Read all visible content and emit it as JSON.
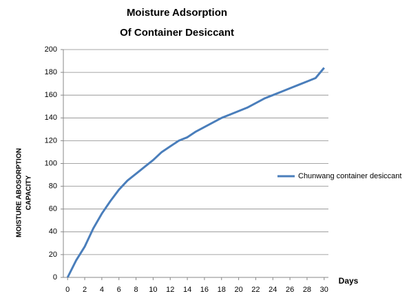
{
  "chart_data": {
    "type": "line",
    "title": [
      "Moisture Adsorption",
      "Of Container Desiccant"
    ],
    "y_label": [
      "MOISTURE ABOSORPTION",
      "CAPACITY"
    ],
    "x_label": "Days",
    "x": [
      0,
      1,
      2,
      3,
      4,
      5,
      6,
      7,
      8,
      9,
      10,
      11,
      12,
      13,
      14,
      15,
      16,
      17,
      18,
      19,
      20,
      21,
      22,
      23,
      24,
      25,
      26,
      27,
      28,
      29,
      30
    ],
    "series": [
      {
        "name": "Chunwang container desiccant",
        "color": "#4a7ebb",
        "values": [
          0,
          15,
          27,
          43,
          56,
          67,
          77,
          85,
          91,
          97,
          103,
          110,
          115,
          120,
          123,
          128,
          132,
          136,
          140,
          143,
          146,
          149,
          153,
          157,
          160,
          163,
          166,
          169,
          172,
          175,
          184
        ]
      }
    ],
    "xlim": [
      -0.5,
      30.5
    ],
    "xticks": [
      0,
      2,
      4,
      6,
      8,
      10,
      12,
      14,
      16,
      18,
      20,
      22,
      24,
      26,
      28,
      30
    ],
    "ylim": [
      0,
      200
    ],
    "yticks": [
      0,
      20,
      40,
      60,
      80,
      100,
      120,
      140,
      160,
      180,
      200
    ],
    "grid": true,
    "legend": "right"
  }
}
